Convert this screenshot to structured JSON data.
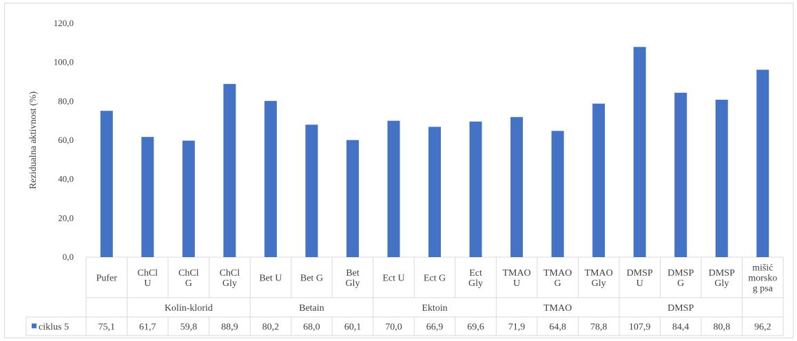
{
  "chart_data": {
    "type": "bar",
    "ylabel": "Rezidualna aktivnost (%)",
    "ylim": [
      0,
      120
    ],
    "yticks": [
      "0,0",
      "20,0",
      "40,0",
      "60,0",
      "80,0",
      "100,0",
      "120,0"
    ],
    "grid": false,
    "categories": [
      [
        "Pufer"
      ],
      [
        "ChCl",
        "U"
      ],
      [
        "ChCl",
        "G"
      ],
      [
        "ChCl",
        "Gly"
      ],
      [
        "Bet U"
      ],
      [
        "Bet G"
      ],
      [
        "Bet",
        "Gly"
      ],
      [
        "Ect U"
      ],
      [
        "Ect G"
      ],
      [
        "Ect",
        "Gly"
      ],
      [
        "TMAO",
        "U"
      ],
      [
        "TMAO",
        "G"
      ],
      [
        "TMAO",
        "Gly"
      ],
      [
        "DMSP",
        "U"
      ],
      [
        "DMSP",
        "G"
      ],
      [
        "DMSP",
        "Gly"
      ],
      [
        "mišić",
        "morsko",
        "g psa"
      ]
    ],
    "groups": [
      {
        "label": "",
        "start": 0,
        "end": 0
      },
      {
        "label": "Kolin-klorid",
        "start": 1,
        "end": 3
      },
      {
        "label": "Betain",
        "start": 4,
        "end": 6
      },
      {
        "label": "Ektoin",
        "start": 7,
        "end": 9
      },
      {
        "label": "TMAO",
        "start": 10,
        "end": 12
      },
      {
        "label": "DMSP",
        "start": 13,
        "end": 15
      },
      {
        "label": "",
        "start": 16,
        "end": 16
      }
    ],
    "series": [
      {
        "name": "ciklus 5",
        "color": "#4472c4",
        "values": [
          75.1,
          61.7,
          59.8,
          88.9,
          80.2,
          68.0,
          60.1,
          70.0,
          66.9,
          69.6,
          71.9,
          64.8,
          78.8,
          107.9,
          84.4,
          80.8,
          96.2
        ],
        "value_labels": [
          "75,1",
          "61,7",
          "59,8",
          "88,9",
          "80,2",
          "68,0",
          "60,1",
          "70,0",
          "66,9",
          "69,6",
          "71,9",
          "64,8",
          "78,8",
          "107,9",
          "84,4",
          "80,8",
          "96,2"
        ]
      }
    ]
  }
}
